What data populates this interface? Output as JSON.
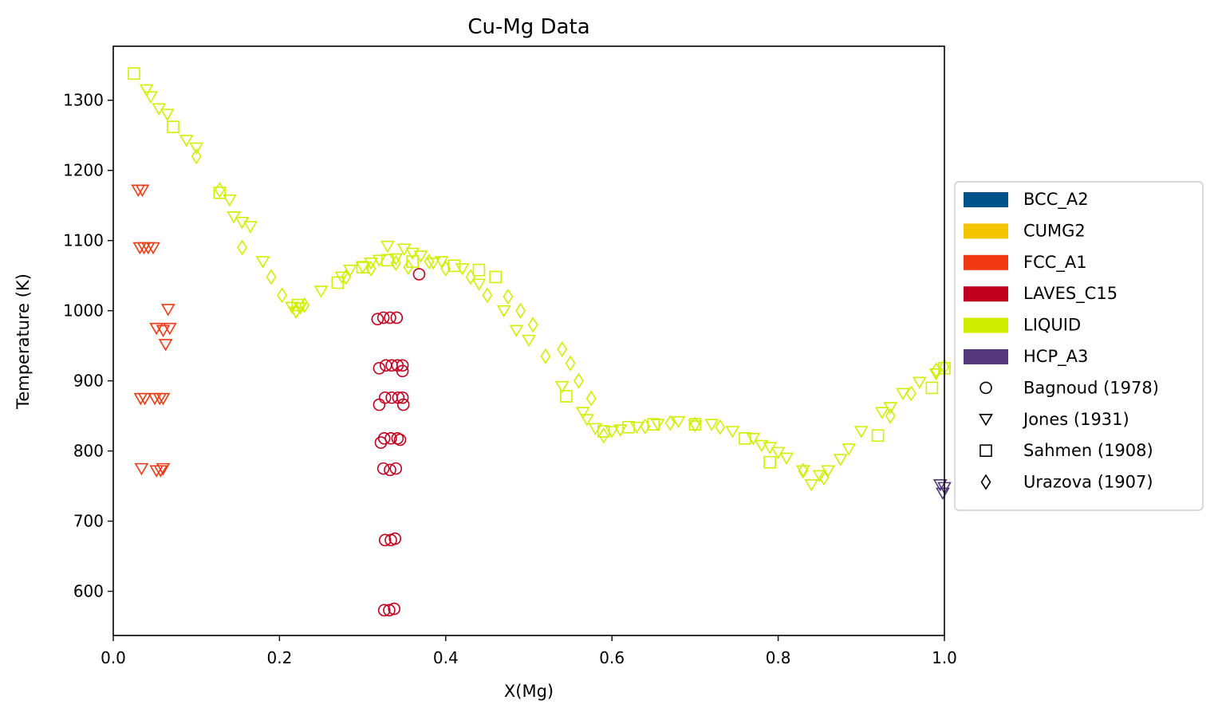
{
  "chart_data": {
    "type": "scatter",
    "title": "Cu-Mg Data",
    "xlabel": "X(Mg)",
    "ylabel": "Temperature (K)",
    "xlim": [
      0.0,
      1.0
    ],
    "ylim": [
      537,
      1377
    ],
    "xticks": [
      0.0,
      0.2,
      0.4,
      0.6,
      0.8,
      1.0
    ],
    "xtick_labels": [
      "0.0",
      "0.2",
      "0.4",
      "0.6",
      "0.8",
      "1.0"
    ],
    "yticks": [
      600,
      700,
      800,
      900,
      1000,
      1100,
      1200,
      1300
    ],
    "ytick_labels": [
      "600",
      "700",
      "800",
      "900",
      "1000",
      "1100",
      "1200",
      "1300"
    ],
    "grid": false,
    "legend_position": "outside-right",
    "phases": [
      {
        "name": "BCC_A2",
        "color": "#00538a"
      },
      {
        "name": "CUMG2",
        "color": "#f4c400"
      },
      {
        "name": "FCC_A1",
        "color": "#f13a13"
      },
      {
        "name": "LAVES_C15",
        "color": "#c10020"
      },
      {
        "name": "LIQUID",
        "color": "#d0ef00"
      },
      {
        "name": "HCP_A3",
        "color": "#53377a"
      }
    ],
    "references": [
      {
        "name": "Bagnoud (1978)",
        "marker": "circle"
      },
      {
        "name": "Jones (1931)",
        "marker": "triangle-down"
      },
      {
        "name": "Sahmen (1908)",
        "marker": "square"
      },
      {
        "name": "Urazova (1907)",
        "marker": "diamond"
      }
    ],
    "series": [
      {
        "phase": "LIQUID",
        "reference": "Sahmen (1908)",
        "points": [
          [
            0.025,
            1338
          ],
          [
            0.072,
            1262
          ],
          [
            0.128,
            1168
          ],
          [
            0.222,
            1008
          ],
          [
            0.27,
            1040
          ],
          [
            0.3,
            1062
          ],
          [
            0.33,
            1072
          ],
          [
            0.36,
            1070
          ],
          [
            0.41,
            1064
          ],
          [
            0.44,
            1058
          ],
          [
            0.46,
            1048
          ],
          [
            0.545,
            878
          ],
          [
            0.59,
            828
          ],
          [
            0.62,
            834
          ],
          [
            0.65,
            838
          ],
          [
            0.7,
            838
          ],
          [
            0.76,
            818
          ],
          [
            0.79,
            784
          ],
          [
            0.92,
            822
          ],
          [
            0.985,
            890
          ],
          [
            1.0,
            918
          ]
        ]
      },
      {
        "phase": "LIQUID",
        "reference": "Jones (1931)",
        "points": [
          [
            0.04,
            1315
          ],
          [
            0.045,
            1305
          ],
          [
            0.055,
            1288
          ],
          [
            0.065,
            1280
          ],
          [
            0.088,
            1243
          ],
          [
            0.1,
            1232
          ],
          [
            0.14,
            1158
          ],
          [
            0.145,
            1134
          ],
          [
            0.155,
            1126
          ],
          [
            0.165,
            1120
          ],
          [
            0.18,
            1070
          ],
          [
            0.215,
            1005
          ],
          [
            0.22,
            998
          ],
          [
            0.225,
            1004
          ],
          [
            0.25,
            1028
          ],
          [
            0.275,
            1048
          ],
          [
            0.285,
            1058
          ],
          [
            0.3,
            1062
          ],
          [
            0.31,
            1068
          ],
          [
            0.32,
            1072
          ],
          [
            0.33,
            1092
          ],
          [
            0.34,
            1074
          ],
          [
            0.35,
            1088
          ],
          [
            0.36,
            1082
          ],
          [
            0.37,
            1078
          ],
          [
            0.385,
            1068
          ],
          [
            0.395,
            1070
          ],
          [
            0.42,
            1060
          ],
          [
            0.44,
            1038
          ],
          [
            0.47,
            1000
          ],
          [
            0.485,
            972
          ],
          [
            0.5,
            958
          ],
          [
            0.54,
            892
          ],
          [
            0.565,
            855
          ],
          [
            0.57,
            845
          ],
          [
            0.58,
            832
          ],
          [
            0.6,
            828
          ],
          [
            0.61,
            830
          ],
          [
            0.63,
            834
          ],
          [
            0.655,
            838
          ],
          [
            0.68,
            842
          ],
          [
            0.7,
            836
          ],
          [
            0.72,
            838
          ],
          [
            0.745,
            828
          ],
          [
            0.77,
            818
          ],
          [
            0.78,
            808
          ],
          [
            0.79,
            805
          ],
          [
            0.8,
            798
          ],
          [
            0.81,
            790
          ],
          [
            0.83,
            772
          ],
          [
            0.84,
            752
          ],
          [
            0.85,
            765
          ],
          [
            0.86,
            772
          ],
          [
            0.875,
            788
          ],
          [
            0.885,
            803
          ],
          [
            0.9,
            828
          ],
          [
            0.925,
            855
          ],
          [
            0.935,
            862
          ],
          [
            0.95,
            882
          ],
          [
            0.97,
            898
          ],
          [
            0.99,
            910
          ]
        ]
      },
      {
        "phase": "LIQUID",
        "reference": "Urazova (1907)",
        "points": [
          [
            0.1,
            1220
          ],
          [
            0.128,
            1172
          ],
          [
            0.155,
            1090
          ],
          [
            0.19,
            1048
          ],
          [
            0.203,
            1022
          ],
          [
            0.22,
            1000
          ],
          [
            0.23,
            1008
          ],
          [
            0.28,
            1048
          ],
          [
            0.31,
            1060
          ],
          [
            0.34,
            1068
          ],
          [
            0.355,
            1062
          ],
          [
            0.38,
            1070
          ],
          [
            0.4,
            1060
          ],
          [
            0.43,
            1048
          ],
          [
            0.45,
            1022
          ],
          [
            0.475,
            1020
          ],
          [
            0.49,
            1000
          ],
          [
            0.505,
            980
          ],
          [
            0.52,
            935
          ],
          [
            0.54,
            945
          ],
          [
            0.55,
            925
          ],
          [
            0.56,
            900
          ],
          [
            0.575,
            875
          ],
          [
            0.59,
            822
          ],
          [
            0.64,
            835
          ],
          [
            0.67,
            840
          ],
          [
            0.7,
            838
          ],
          [
            0.73,
            834
          ],
          [
            0.83,
            772
          ],
          [
            0.855,
            762
          ],
          [
            0.935,
            850
          ],
          [
            0.96,
            882
          ],
          [
            0.99,
            915
          ],
          [
            1.0,
            920
          ]
        ]
      },
      {
        "phase": "FCC_A1",
        "reference": "Jones (1931)",
        "points": [
          [
            0.03,
            1172
          ],
          [
            0.035,
            1172
          ],
          [
            0.032,
            1090
          ],
          [
            0.037,
            1090
          ],
          [
            0.042,
            1090
          ],
          [
            0.048,
            1090
          ],
          [
            0.066,
            1002
          ],
          [
            0.052,
            975
          ],
          [
            0.06,
            972
          ],
          [
            0.068,
            975
          ],
          [
            0.063,
            952
          ],
          [
            0.033,
            875
          ],
          [
            0.038,
            875
          ],
          [
            0.05,
            875
          ],
          [
            0.056,
            875
          ],
          [
            0.06,
            875
          ],
          [
            0.034,
            775
          ],
          [
            0.052,
            772
          ],
          [
            0.057,
            772
          ],
          [
            0.06,
            775
          ]
        ]
      },
      {
        "phase": "LAVES_C15",
        "reference": "Bagnoud (1978)",
        "points": [
          [
            0.318,
            988
          ],
          [
            0.325,
            990
          ],
          [
            0.333,
            990
          ],
          [
            0.341,
            990
          ],
          [
            0.32,
            918
          ],
          [
            0.328,
            922
          ],
          [
            0.335,
            922
          ],
          [
            0.342,
            922
          ],
          [
            0.348,
            922
          ],
          [
            0.348,
            914
          ],
          [
            0.32,
            866
          ],
          [
            0.327,
            876
          ],
          [
            0.335,
            876
          ],
          [
            0.343,
            876
          ],
          [
            0.348,
            876
          ],
          [
            0.349,
            866
          ],
          [
            0.322,
            812
          ],
          [
            0.326,
            818
          ],
          [
            0.334,
            818
          ],
          [
            0.342,
            818
          ],
          [
            0.345,
            816
          ],
          [
            0.325,
            775
          ],
          [
            0.333,
            773
          ],
          [
            0.34,
            775
          ],
          [
            0.327,
            673
          ],
          [
            0.334,
            673
          ],
          [
            0.339,
            675
          ],
          [
            0.326,
            573
          ],
          [
            0.332,
            573
          ],
          [
            0.338,
            575
          ],
          [
            0.368,
            1052
          ]
        ]
      },
      {
        "phase": "HCP_A3",
        "reference": "Jones (1931)",
        "points": [
          [
            0.995,
            752
          ],
          [
            1.0,
            748
          ],
          [
            0.998,
            740
          ]
        ]
      }
    ]
  }
}
